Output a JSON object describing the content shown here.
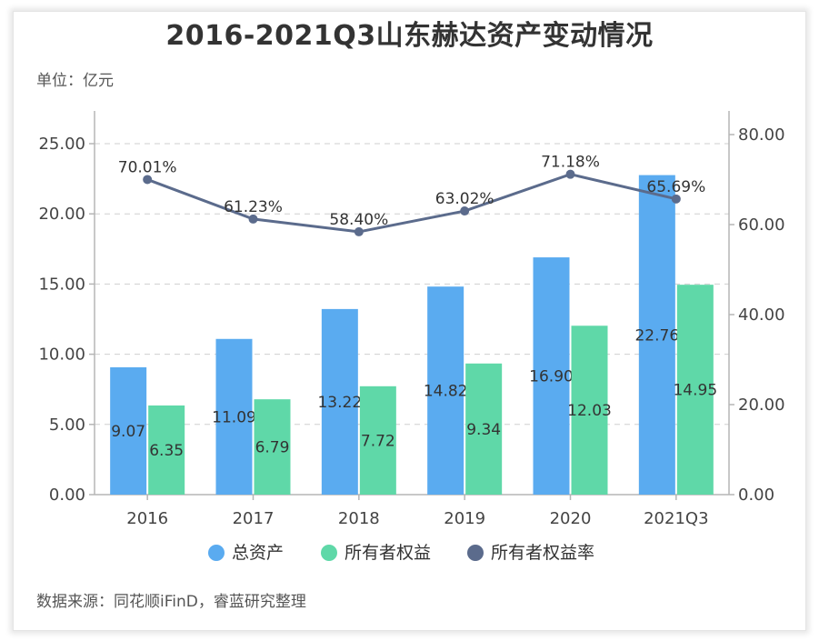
{
  "chart_data": {
    "type": "bar",
    "title": "2016-2021Q3山东赫达资产变动情况",
    "unit_label": "单位：亿元",
    "source": "数据来源：同花顺iFinD，睿蓝研究整理",
    "categories": [
      "2016",
      "2017",
      "2018",
      "2019",
      "2020",
      "2021Q3"
    ],
    "series": [
      {
        "name": "总资产",
        "kind": "bar",
        "axis": "left",
        "color": "#5aabf0",
        "values": [
          9.07,
          11.09,
          13.22,
          14.82,
          16.9,
          22.76
        ],
        "labels": [
          "9.07",
          "11.09",
          "13.22",
          "14.82",
          "16.90",
          "22.76"
        ]
      },
      {
        "name": "所有者权益",
        "kind": "bar",
        "axis": "left",
        "color": "#5fd8a8",
        "values": [
          6.35,
          6.79,
          7.72,
          9.34,
          12.03,
          14.95
        ],
        "labels": [
          "6.35",
          "6.79",
          "7.72",
          "9.34",
          "12.03",
          "14.95"
        ]
      },
      {
        "name": "所有者权益率",
        "kind": "line",
        "axis": "right",
        "color": "#5b6b8c",
        "values": [
          70.01,
          61.23,
          58.4,
          63.02,
          71.18,
          65.69
        ],
        "labels": [
          "70.01%",
          "61.23%",
          "58.40%",
          "63.02%",
          "71.18%",
          "65.69%"
        ]
      }
    ],
    "y_left": {
      "range": [
        0,
        27.5
      ],
      "ticks": [
        "0.00",
        "5.00",
        "10.00",
        "15.00",
        "20.00",
        "25.00"
      ]
    },
    "y_right": {
      "range": [
        0,
        80
      ],
      "ticks": [
        "0.00",
        "20.00",
        "40.00",
        "60.00",
        "80.00"
      ]
    },
    "grid": "dashed horizontal",
    "legend_position": "bottom-center"
  }
}
